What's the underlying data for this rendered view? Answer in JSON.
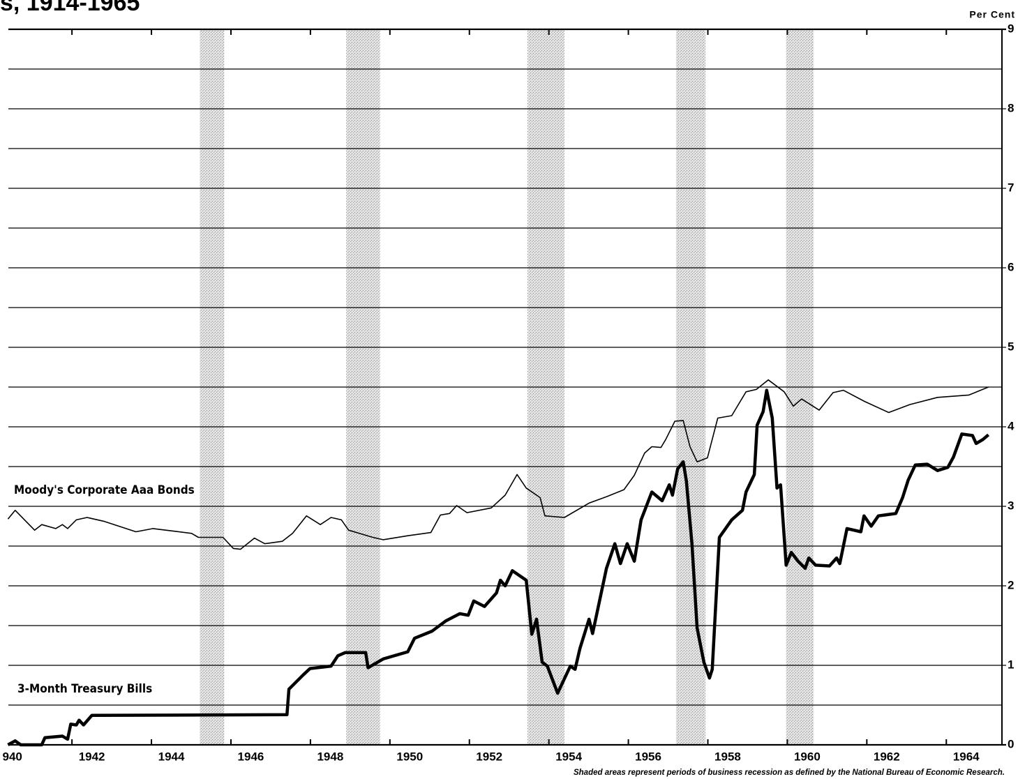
{
  "chart_data": {
    "type": "line",
    "title": "s, 1914-1965",
    "y_axis_label": "Per Cent",
    "footnote": "Shaded areas represent periods of business recession as defined by the National Bureau of Economic Research.",
    "xlim": [
      1940.4,
      1965.4
    ],
    "xticks": [
      {
        "value": 1940,
        "label": "940"
      },
      1942,
      1944,
      1946,
      1948,
      1950,
      1952,
      1954,
      1956,
      1958,
      1960,
      1962,
      1964
    ],
    "xtick_labels_centered_in_year": true,
    "ylim": [
      0,
      9
    ],
    "yticks": [
      0,
      1,
      2,
      3,
      4,
      5,
      6,
      7,
      8,
      9
    ],
    "ygrid": [
      0.5,
      1.5,
      2.5,
      3.5,
      4.5,
      5.5,
      6.5,
      7.5,
      8.5
    ],
    "grid": true,
    "recessions": [
      [
        1945.22,
        1945.83
      ],
      [
        1948.9,
        1949.75
      ],
      [
        1953.46,
        1954.39
      ],
      [
        1957.2,
        1957.94
      ],
      [
        1959.97,
        1960.66
      ]
    ],
    "series": [
      {
        "name": "Moody's Corporate Aaa Bonds",
        "color": "#000000",
        "width": 1.6,
        "x": [
          1940.39,
          1940.57,
          1941.06,
          1941.24,
          1941.59,
          1941.76,
          1941.89,
          1942.11,
          1942.38,
          1942.82,
          1943.61,
          1944.04,
          1945.01,
          1945.18,
          1945.8,
          1946.06,
          1946.24,
          1946.59,
          1946.85,
          1947.29,
          1947.55,
          1947.9,
          1948.25,
          1948.52,
          1948.78,
          1948.96,
          1949.57,
          1949.83,
          1950.45,
          1951.03,
          1951.27,
          1951.5,
          1951.68,
          1951.94,
          1952.55,
          1952.9,
          1953.2,
          1953.43,
          1953.78,
          1953.9,
          1954.39,
          1955.01,
          1955.45,
          1955.89,
          1956.15,
          1956.41,
          1956.59,
          1956.82,
          1956.94,
          1957.17,
          1957.38,
          1957.55,
          1957.73,
          1957.99,
          1958.25,
          1958.6,
          1958.96,
          1959.22,
          1959.52,
          1959.92,
          1960.15,
          1960.36,
          1960.8,
          1961.15,
          1961.41,
          1961.94,
          1962.55,
          1963.08,
          1963.78,
          1964.57,
          1965.06
        ],
        "values": [
          2.84,
          2.95,
          2.7,
          2.77,
          2.72,
          2.77,
          2.72,
          2.83,
          2.86,
          2.81,
          2.68,
          2.72,
          2.66,
          2.61,
          2.61,
          2.47,
          2.46,
          2.6,
          2.53,
          2.56,
          2.66,
          2.88,
          2.77,
          2.86,
          2.83,
          2.7,
          2.61,
          2.58,
          2.63,
          2.67,
          2.89,
          2.91,
          3.01,
          2.92,
          2.98,
          3.14,
          3.4,
          3.23,
          3.11,
          2.88,
          2.86,
          3.04,
          3.12,
          3.21,
          3.39,
          3.67,
          3.75,
          3.74,
          3.84,
          4.07,
          4.08,
          3.75,
          3.56,
          3.61,
          4.11,
          4.14,
          4.44,
          4.47,
          4.59,
          4.44,
          4.26,
          4.35,
          4.21,
          4.43,
          4.46,
          4.32,
          4.18,
          4.28,
          4.37,
          4.4,
          4.5
        ]
      },
      {
        "name": "3-Month Treasury Bills",
        "color": "#000000",
        "width": 4.5,
        "x": [
          1940.39,
          1940.57,
          1940.71,
          1941.24,
          1941.32,
          1941.76,
          1941.89,
          1941.97,
          1942.11,
          1942.18,
          1942.29,
          1942.5,
          1947.41,
          1947.46,
          1947.82,
          1947.99,
          1948.52,
          1948.69,
          1948.87,
          1949.39,
          1949.45,
          1949.83,
          1950.45,
          1950.62,
          1951.06,
          1951.41,
          1951.76,
          1951.97,
          1952.11,
          1952.38,
          1952.68,
          1952.78,
          1952.9,
          1953.08,
          1953.43,
          1953.57,
          1953.69,
          1953.83,
          1953.96,
          1954.22,
          1954.54,
          1954.66,
          1954.78,
          1955.01,
          1955.1,
          1955.45,
          1955.66,
          1955.8,
          1955.97,
          1956.15,
          1956.32,
          1956.59,
          1956.85,
          1957.03,
          1957.11,
          1957.24,
          1957.38,
          1957.46,
          1957.6,
          1957.73,
          1957.9,
          1958.04,
          1958.11,
          1958.29,
          1958.6,
          1958.87,
          1958.96,
          1959.17,
          1959.24,
          1959.39,
          1959.48,
          1959.62,
          1959.74,
          1959.83,
          1959.97,
          1960.1,
          1960.27,
          1960.45,
          1960.54,
          1960.71,
          1961.06,
          1961.24,
          1961.32,
          1961.5,
          1961.85,
          1961.93,
          1962.11,
          1962.29,
          1962.73,
          1962.9,
          1963.04,
          1963.22,
          1963.52,
          1963.78,
          1964.04,
          1964.18,
          1964.39,
          1964.66,
          1964.75,
          1964.92,
          1965.06
        ],
        "values": [
          0,
          0.05,
          0,
          0,
          0.09,
          0.11,
          0.07,
          0.26,
          0.25,
          0.31,
          0.25,
          0.37,
          0.38,
          0.7,
          0.88,
          0.96,
          0.99,
          1.12,
          1.16,
          1.16,
          0.97,
          1.08,
          1.17,
          1.34,
          1.43,
          1.56,
          1.65,
          1.63,
          1.81,
          1.74,
          1.91,
          2.07,
          2.0,
          2.19,
          2.07,
          1.39,
          1.58,
          1.04,
          0.99,
          0.65,
          0.99,
          0.95,
          1.21,
          1.58,
          1.4,
          2.22,
          2.53,
          2.28,
          2.53,
          2.31,
          2.83,
          3.18,
          3.07,
          3.27,
          3.14,
          3.47,
          3.56,
          3.32,
          2.53,
          1.47,
          1.04,
          0.84,
          0.95,
          2.61,
          2.83,
          2.95,
          3.18,
          3.4,
          4.02,
          4.19,
          4.46,
          4.11,
          3.23,
          3.27,
          2.26,
          2.42,
          2.31,
          2.22,
          2.35,
          2.26,
          2.25,
          2.35,
          2.28,
          2.72,
          2.68,
          2.88,
          2.75,
          2.88,
          2.91,
          3.11,
          3.33,
          3.52,
          3.53,
          3.45,
          3.49,
          3.62,
          3.91,
          3.89,
          3.79,
          3.84,
          3.9
        ]
      }
    ]
  }
}
